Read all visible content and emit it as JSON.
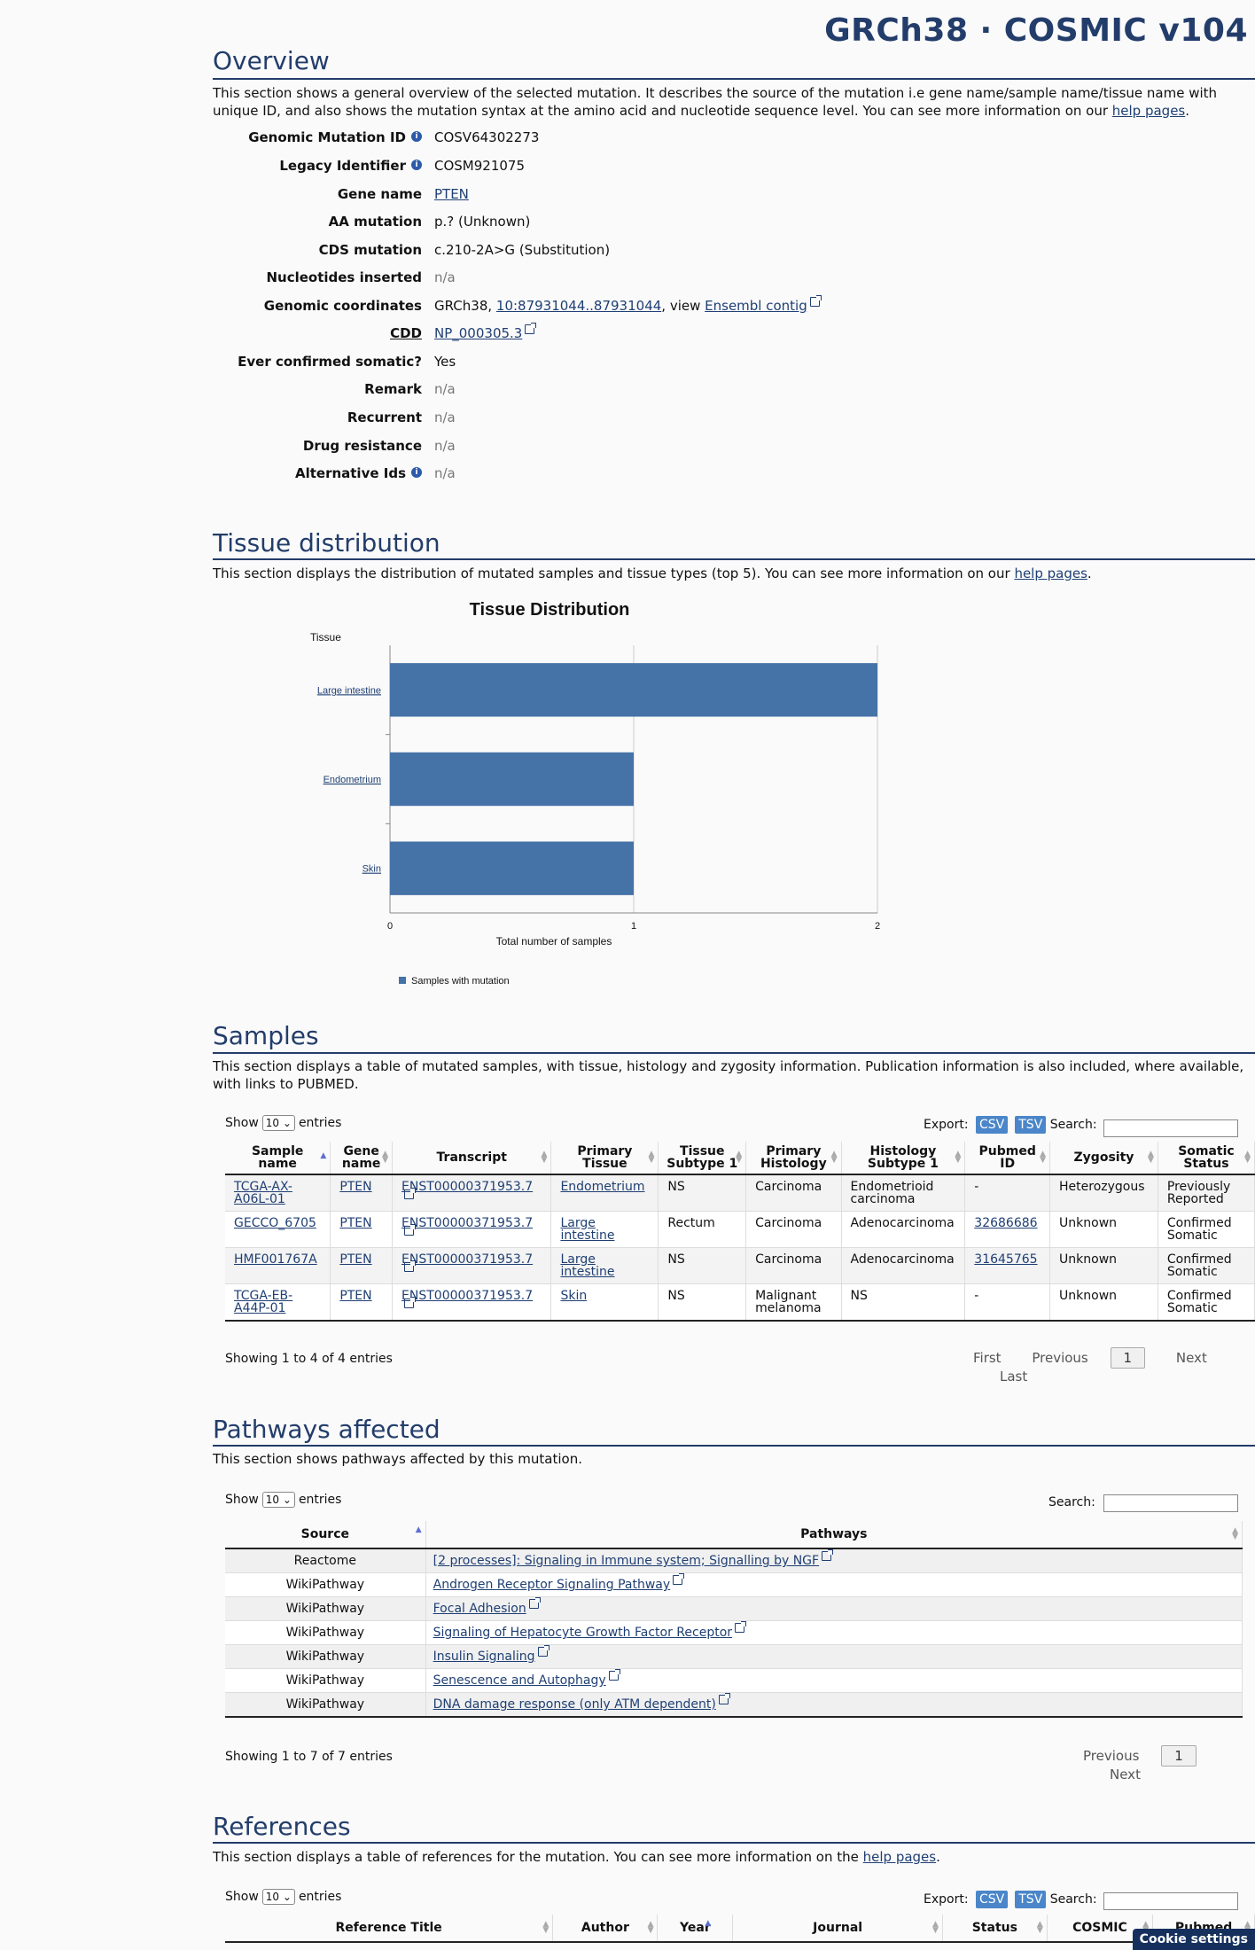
{
  "header": {
    "title": "GRCh38 · COSMIC v104"
  },
  "overview": {
    "heading": "Overview",
    "intro": "This section shows a general overview of the selected mutation. It describes the source of the mutation i.e gene name/sample name/tissue name with unique ID, and also shows the mutation syntax at the amino acid and nucleotide sequence level. You can see more information on our ",
    "intro_link": "help pages",
    "rows": [
      {
        "label": "Genomic Mutation ID",
        "info": true,
        "value": "COSV64302273"
      },
      {
        "label": "Legacy Identifier",
        "info": true,
        "value": "COSM921075"
      },
      {
        "label": "Gene name",
        "value": "PTEN",
        "link": true
      },
      {
        "label": "AA mutation",
        "value": "p.? (Unknown)"
      },
      {
        "label": "CDS mutation",
        "value": "c.210-2A>G (Substitution)"
      },
      {
        "label": "Nucleotides inserted",
        "value": "n/a",
        "na": true
      },
      {
        "label": "Genomic coordinates",
        "value": "GRCh38, ",
        "coord_link": "10:87931044..87931044",
        "view_text": ", view ",
        "contig_link": "Ensembl contig"
      },
      {
        "label": "CDD",
        "value": "NP_000305.3",
        "link": true,
        "ext": true,
        "underline_label": true
      },
      {
        "label": "Ever confirmed somatic?",
        "value": "Yes"
      },
      {
        "label": "Remark",
        "value": "n/a",
        "na": true
      },
      {
        "label": "Recurrent",
        "value": "n/a",
        "na": true
      },
      {
        "label": "Drug resistance",
        "value": "n/a",
        "na": true
      },
      {
        "label": "Alternative Ids",
        "info": true,
        "value": "n/a",
        "na": true
      }
    ]
  },
  "tissue": {
    "heading": "Tissue distribution",
    "intro": "This section displays the distribution of mutated samples and tissue types (top 5). You can see more information on our ",
    "intro_link": "help pages"
  },
  "chart_data": {
    "type": "bar",
    "orientation": "horizontal",
    "title": "Tissue Distribution",
    "ylabel": "Tissue",
    "xlabel": "Total number of samples",
    "categories": [
      "Large intestine",
      "Endometrium",
      "Skin"
    ],
    "series": [
      {
        "name": "Samples with mutation",
        "values": [
          2,
          1,
          1
        ]
      }
    ],
    "xlim": [
      0,
      2
    ],
    "xticks": [
      "0",
      "1",
      "2"
    ],
    "bar_color": "#4572a7",
    "grid": true,
    "legend": "bottom-left"
  },
  "samples": {
    "heading": "Samples",
    "intro": "This section displays a table of mutated samples, with tissue, histology and zygosity information. Publication information is also included, where available, with links to PUBMED.",
    "show": "Show",
    "entries_sel": "10",
    "entries": "entries",
    "export": "Export:",
    "csv": "CSV",
    "tsv": "TSV",
    "search": "Search:",
    "columns": [
      "Sample name",
      "Gene name",
      "Transcript",
      "Primary Tissue",
      "Tissue Subtype 1",
      "Primary Histology",
      "Histology Subtype 1",
      "Pubmed ID",
      "Zygosity",
      "Somatic Status"
    ],
    "rows": [
      [
        "TCGA-AX-A06L-01",
        "PTEN",
        "ENST00000371953.7",
        "Endometrium",
        "NS",
        "Carcinoma",
        "Endometrioid carcinoma",
        "-",
        "Heterozygous",
        "Previously Reported"
      ],
      [
        "GECCO_6705",
        "PTEN",
        "ENST00000371953.7",
        "Large intestine",
        "Rectum",
        "Carcinoma",
        "Adenocarcinoma",
        "32686686",
        "Unknown",
        "Confirmed Somatic"
      ],
      [
        "HMF001767A",
        "PTEN",
        "ENST00000371953.7",
        "Large intestine",
        "NS",
        "Carcinoma",
        "Adenocarcinoma",
        "31645765",
        "Unknown",
        "Confirmed Somatic"
      ],
      [
        "TCGA-EB-A44P-01",
        "PTEN",
        "ENST00000371953.7",
        "Skin",
        "NS",
        "Malignant melanoma",
        "NS",
        "-",
        "Unknown",
        "Confirmed Somatic"
      ]
    ],
    "info": "Showing 1 to 4 of 4 entries",
    "pager": {
      "first": "First",
      "prev": "Previous",
      "page": "1",
      "next": "Next",
      "last": "Last"
    }
  },
  "pathways": {
    "heading": "Pathways affected",
    "intro": "This section shows pathways affected by this mutation.",
    "show": "Show",
    "entries_sel": "10",
    "entries": "entries",
    "search": "Search:",
    "columns": [
      "Source",
      "Pathways"
    ],
    "rows": [
      [
        "Reactome",
        "[2 processes]: Signaling in Immune system; Signalling by NGF"
      ],
      [
        "WikiPathway",
        "Androgen Receptor Signaling Pathway"
      ],
      [
        "WikiPathway",
        "Focal Adhesion"
      ],
      [
        "WikiPathway",
        "Signaling of Hepatocyte Growth Factor Receptor"
      ],
      [
        "WikiPathway",
        "Insulin Signaling"
      ],
      [
        "WikiPathway",
        "Senescence and Autophagy"
      ],
      [
        "WikiPathway",
        "DNA damage response (only ATM dependent)"
      ]
    ],
    "info": "Showing 1 to 7 of 7 entries",
    "pager": {
      "prev": "Previous",
      "page": "1",
      "next": "Next"
    }
  },
  "references": {
    "heading": "References",
    "intro": "This section displays a table of references for the mutation. You can see more information on the ",
    "intro_link": "help pages",
    "show": "Show",
    "entries_sel": "10",
    "entries": "entries",
    "export": "Export:",
    "csv": "CSV",
    "tsv": "TSV",
    "search": "Search:",
    "columns": [
      "Reference Title",
      "Author",
      "Year",
      "Journal",
      "Status",
      "COSMIC",
      "Pubmed"
    ]
  },
  "cookie": "Cookie settings"
}
